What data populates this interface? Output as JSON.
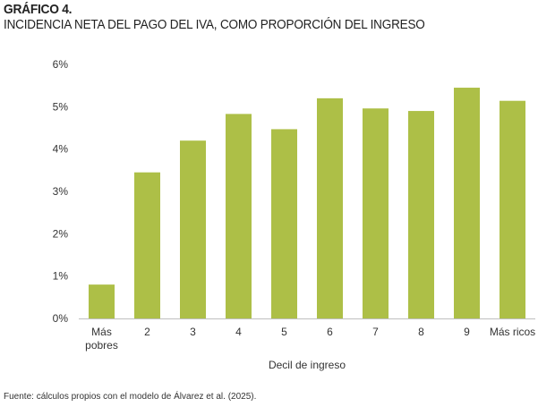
{
  "header": {
    "figure_label": "GRÁFICO 4.",
    "title": "INCIDENCIA NETA DEL PAGO DEL IVA, COMO PROPORCIÓN DEL INGRESO"
  },
  "footer": {
    "source": "Fuente: cálculos propios con el modelo de Álvarez et al. (2025)."
  },
  "chart_data": {
    "type": "bar",
    "categories": [
      "Más pobres",
      "2",
      "3",
      "4",
      "5",
      "6",
      "7",
      "8",
      "9",
      "Más ricos"
    ],
    "category_lines": [
      [
        "Más",
        "pobres"
      ],
      [
        "2"
      ],
      [
        "3"
      ],
      [
        "4"
      ],
      [
        "5"
      ],
      [
        "6"
      ],
      [
        "7"
      ],
      [
        "8"
      ],
      [
        "9"
      ],
      [
        "Más ricos"
      ]
    ],
    "series": [
      {
        "values": [
          0.8,
          3.45,
          4.2,
          4.83,
          4.47,
          5.2,
          4.96,
          4.9,
          5.45,
          5.14
        ]
      }
    ],
    "xlabel": "Decil de ingreso",
    "ylabel": "",
    "ylim": [
      0,
      6
    ],
    "yticks": [
      0,
      1,
      2,
      3,
      4,
      5,
      6
    ],
    "ytick_labels": [
      "0%",
      "1%",
      "2%",
      "3%",
      "4%",
      "5%",
      "6%"
    ],
    "bar_color": "#adbf47",
    "axis_color": "#bfbfbf",
    "grid": false,
    "legend": "none"
  }
}
